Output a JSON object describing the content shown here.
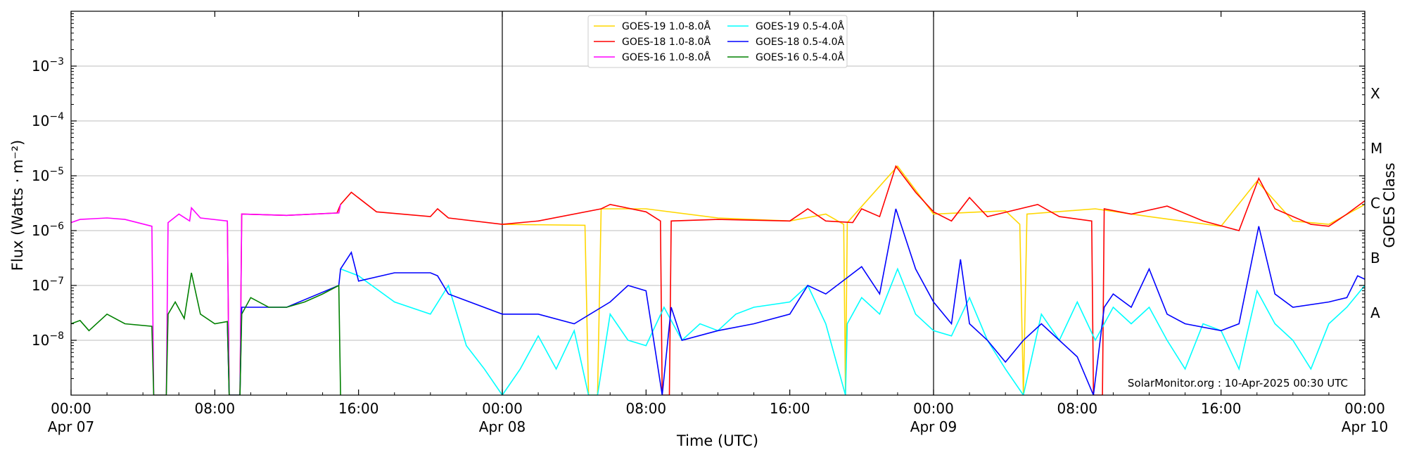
{
  "chart_data": {
    "type": "line",
    "xlabel": "Time (UTC)",
    "ylabel": "Flux (Watts · m⁻²)",
    "right_label": "GOES Class",
    "credit": "SolarMonitor.org : 10-Apr-2025 00:30 UTC",
    "x_range_hours": [
      0,
      72
    ],
    "ylim_log10": [
      -9,
      -2
    ],
    "y_ticks": [
      {
        "exp": -8,
        "label": "10",
        "sup": "−8"
      },
      {
        "exp": -7,
        "label": "10",
        "sup": "−7"
      },
      {
        "exp": -6,
        "label": "10",
        "sup": "−6"
      },
      {
        "exp": -5,
        "label": "10",
        "sup": "−5"
      },
      {
        "exp": -4,
        "label": "10",
        "sup": "−4"
      },
      {
        "exp": -3,
        "label": "10",
        "sup": "−3"
      }
    ],
    "x_ticks": [
      {
        "h": 0,
        "time": "00:00",
        "date": "Apr 07"
      },
      {
        "h": 8,
        "time": "08:00",
        "date": ""
      },
      {
        "h": 16,
        "time": "16:00",
        "date": ""
      },
      {
        "h": 24,
        "time": "00:00",
        "date": "Apr 08"
      },
      {
        "h": 32,
        "time": "08:00",
        "date": ""
      },
      {
        "h": 40,
        "time": "16:00",
        "date": ""
      },
      {
        "h": 48,
        "time": "00:00",
        "date": "Apr 09"
      },
      {
        "h": 56,
        "time": "08:00",
        "date": ""
      },
      {
        "h": 64,
        "time": "16:00",
        "date": ""
      },
      {
        "h": 72,
        "time": "00:00",
        "date": "Apr 10"
      }
    ],
    "day_boundaries_hours": [
      24,
      48
    ],
    "goes_classes": [
      {
        "label": "A",
        "exp": -7.5
      },
      {
        "label": "B",
        "exp": -6.5
      },
      {
        "label": "C",
        "exp": -5.5
      },
      {
        "label": "M",
        "exp": -4.5
      },
      {
        "label": "X",
        "exp": -3.5
      }
    ],
    "legend_placement": "top-center",
    "grid": "horizontal",
    "series": [
      {
        "name": "GOES-19 1.0-8.0Å",
        "color": "#ffd700",
        "points": [
          [
            24,
            1.3e-06
          ],
          [
            28.6,
            1.25e-06
          ],
          [
            28.8,
            1e-09
          ],
          [
            29.3,
            1e-09
          ],
          [
            29.5,
            2.5e-06
          ],
          [
            32,
            2.5e-06
          ],
          [
            36,
            1.7e-06
          ],
          [
            40,
            1.5e-06
          ],
          [
            42,
            2e-06
          ],
          [
            43,
            1.3e-06
          ],
          [
            43.1,
            1e-09
          ],
          [
            43.2,
            1.4e-06
          ],
          [
            46,
            1.5e-05
          ],
          [
            48,
            2e-06
          ],
          [
            52,
            2.3e-06
          ],
          [
            52.8,
            1.3e-06
          ],
          [
            53.0,
            1e-09
          ],
          [
            53.2,
            2e-06
          ],
          [
            57,
            2.5e-06
          ],
          [
            60,
            1.8e-06
          ],
          [
            64,
            1.2e-06
          ],
          [
            66,
            8e-06
          ],
          [
            68,
            1.5e-06
          ],
          [
            70,
            1.3e-06
          ],
          [
            72,
            3e-06
          ]
        ]
      },
      {
        "name": "GOES-18 1.0-8.0Å",
        "color": "#ff0000",
        "points": [
          [
            8.7,
            1.5e-06
          ],
          [
            8.8,
            1e-09
          ],
          [
            9.4,
            1e-09
          ],
          [
            9.5,
            2e-06
          ],
          [
            12,
            1.9e-06
          ],
          [
            14.8,
            2.1e-06
          ],
          [
            15,
            3e-06
          ],
          [
            15.6,
            5e-06
          ],
          [
            17,
            2.2e-06
          ],
          [
            20,
            1.8e-06
          ],
          [
            20.4,
            2.5e-06
          ],
          [
            21,
            1.7e-06
          ],
          [
            24,
            1.3e-06
          ],
          [
            26,
            1.5e-06
          ],
          [
            29.5,
            2.5e-06
          ],
          [
            30,
            3e-06
          ],
          [
            32,
            2.2e-06
          ],
          [
            32.8,
            1.5e-06
          ],
          [
            32.9,
            1e-09
          ],
          [
            33.3,
            1e-09
          ],
          [
            33.4,
            1.5e-06
          ],
          [
            36,
            1.6e-06
          ],
          [
            40,
            1.5e-06
          ],
          [
            41,
            2.5e-06
          ],
          [
            42,
            1.5e-06
          ],
          [
            43.5,
            1.4e-06
          ],
          [
            44,
            2.5e-06
          ],
          [
            45,
            1.8e-06
          ],
          [
            45.9,
            1.5e-05
          ],
          [
            47,
            5e-06
          ],
          [
            48,
            2.2e-06
          ],
          [
            49,
            1.5e-06
          ],
          [
            50,
            4e-06
          ],
          [
            51,
            1.8e-06
          ],
          [
            53.8,
            3e-06
          ],
          [
            55,
            1.8e-06
          ],
          [
            56.8,
            1.5e-06
          ],
          [
            56.9,
            1e-09
          ],
          [
            57.4,
            1e-09
          ],
          [
            57.5,
            2.5e-06
          ],
          [
            59,
            2e-06
          ],
          [
            61,
            2.8e-06
          ],
          [
            63,
            1.5e-06
          ],
          [
            65,
            1e-06
          ],
          [
            66.1,
            9e-06
          ],
          [
            67,
            2.5e-06
          ],
          [
            69,
            1.3e-06
          ],
          [
            70,
            1.2e-06
          ],
          [
            71,
            2e-06
          ],
          [
            72,
            3.5e-06
          ]
        ]
      },
      {
        "name": "GOES-16 1.0-8.0Å",
        "color": "#ff00ff",
        "points": [
          [
            0,
            1.4e-06
          ],
          [
            0.5,
            1.6e-06
          ],
          [
            2,
            1.7e-06
          ],
          [
            3,
            1.6e-06
          ],
          [
            4.5,
            1.2e-06
          ],
          [
            4.6,
            1e-09
          ],
          [
            5.3,
            1e-09
          ],
          [
            5.4,
            1.4e-06
          ],
          [
            6,
            2e-06
          ],
          [
            6.6,
            1.5e-06
          ],
          [
            6.7,
            2.6e-06
          ],
          [
            7.2,
            1.7e-06
          ],
          [
            8.7,
            1.5e-06
          ],
          [
            8.8,
            1e-09
          ],
          [
            9.4,
            1e-09
          ],
          [
            9.5,
            2e-06
          ],
          [
            12,
            1.9e-06
          ],
          [
            14.9,
            2.1e-06
          ],
          [
            15.0,
            3e-06
          ]
        ]
      },
      {
        "name": "GOES-19 0.5-4.0Å",
        "color": "#00ffff",
        "points": [
          [
            15,
            2e-07
          ],
          [
            16,
            1.5e-07
          ],
          [
            18,
            5e-08
          ],
          [
            20,
            3e-08
          ],
          [
            21,
            1e-07
          ],
          [
            22,
            8e-09
          ],
          [
            23,
            3e-09
          ],
          [
            24,
            1e-09
          ],
          [
            25,
            3e-09
          ],
          [
            26,
            1.2e-08
          ],
          [
            27,
            3e-09
          ],
          [
            28,
            1.5e-08
          ],
          [
            28.8,
            1e-09
          ],
          [
            29.3,
            1e-09
          ],
          [
            30,
            3e-08
          ],
          [
            31,
            1e-08
          ],
          [
            32,
            8e-09
          ],
          [
            33,
            4e-08
          ],
          [
            34,
            1e-08
          ],
          [
            35,
            2e-08
          ],
          [
            36,
            1.5e-08
          ],
          [
            37,
            3e-08
          ],
          [
            38,
            4e-08
          ],
          [
            40,
            5e-08
          ],
          [
            41,
            1e-07
          ],
          [
            42,
            2e-08
          ],
          [
            43.1,
            1e-09
          ],
          [
            43.2,
            2e-08
          ],
          [
            44,
            6e-08
          ],
          [
            45,
            3e-08
          ],
          [
            46,
            2e-07
          ],
          [
            47,
            3e-08
          ],
          [
            48,
            1.5e-08
          ],
          [
            49,
            1.2e-08
          ],
          [
            50,
            6e-08
          ],
          [
            51,
            1e-08
          ],
          [
            52,
            3e-09
          ],
          [
            53,
            1e-09
          ],
          [
            54,
            3e-08
          ],
          [
            55,
            1e-08
          ],
          [
            56,
            5e-08
          ],
          [
            57,
            1e-08
          ],
          [
            58,
            4e-08
          ],
          [
            59,
            2e-08
          ],
          [
            60,
            4e-08
          ],
          [
            61,
            1e-08
          ],
          [
            62,
            3e-09
          ],
          [
            63,
            2e-08
          ],
          [
            64,
            1.5e-08
          ],
          [
            65,
            3e-09
          ],
          [
            66,
            8e-08
          ],
          [
            67,
            2e-08
          ],
          [
            68,
            1e-08
          ],
          [
            69,
            3e-09
          ],
          [
            70,
            2e-08
          ],
          [
            71,
            4e-08
          ],
          [
            72,
            1e-07
          ]
        ]
      },
      {
        "name": "GOES-18 0.5-4.0Å",
        "color": "#0000ff",
        "points": [
          [
            8.7,
            2e-08
          ],
          [
            8.8,
            1e-09
          ],
          [
            9.4,
            1e-09
          ],
          [
            9.5,
            4e-08
          ],
          [
            12,
            4e-08
          ],
          [
            14.9,
            1e-07
          ],
          [
            15.0,
            2e-07
          ],
          [
            15.6,
            4e-07
          ],
          [
            16,
            1.2e-07
          ],
          [
            18,
            1.7e-07
          ],
          [
            20,
            1.7e-07
          ],
          [
            20.4,
            1.5e-07
          ],
          [
            21,
            7e-08
          ],
          [
            24,
            3e-08
          ],
          [
            26,
            3e-08
          ],
          [
            28,
            2e-08
          ],
          [
            30,
            5e-08
          ],
          [
            31,
            1e-07
          ],
          [
            32,
            8e-08
          ],
          [
            32.9,
            1e-09
          ],
          [
            33.4,
            4e-08
          ],
          [
            34,
            1e-08
          ],
          [
            36,
            1.5e-08
          ],
          [
            38,
            2e-08
          ],
          [
            40,
            3e-08
          ],
          [
            41,
            1e-07
          ],
          [
            42,
            7e-08
          ],
          [
            44,
            2.2e-07
          ],
          [
            45,
            7e-08
          ],
          [
            45.9,
            2.5e-06
          ],
          [
            47,
            2e-07
          ],
          [
            48,
            5e-08
          ],
          [
            49,
            2e-08
          ],
          [
            49.5,
            3e-07
          ],
          [
            50,
            2e-08
          ],
          [
            51,
            1e-08
          ],
          [
            52,
            4e-09
          ],
          [
            53,
            1e-08
          ],
          [
            54,
            2e-08
          ],
          [
            55,
            1e-08
          ],
          [
            56,
            5e-09
          ],
          [
            56.9,
            1e-09
          ],
          [
            57.5,
            4e-08
          ],
          [
            58,
            7e-08
          ],
          [
            59,
            4e-08
          ],
          [
            60,
            2e-07
          ],
          [
            61,
            3e-08
          ],
          [
            62,
            2e-08
          ],
          [
            64,
            1.5e-08
          ],
          [
            65,
            2e-08
          ],
          [
            66.1,
            1.2e-06
          ],
          [
            67,
            7e-08
          ],
          [
            68,
            4e-08
          ],
          [
            70,
            5e-08
          ],
          [
            71,
            6e-08
          ],
          [
            71.6,
            1.5e-07
          ],
          [
            72,
            1.3e-07
          ]
        ]
      },
      {
        "name": "GOES-16 0.5-4.0Å",
        "color": "#008000",
        "points": [
          [
            0,
            2e-08
          ],
          [
            0.5,
            2.3e-08
          ],
          [
            1,
            1.5e-08
          ],
          [
            2,
            3e-08
          ],
          [
            3,
            2e-08
          ],
          [
            4.5,
            1.8e-08
          ],
          [
            4.6,
            1e-09
          ],
          [
            5.3,
            1e-09
          ],
          [
            5.4,
            3e-08
          ],
          [
            5.8,
            5e-08
          ],
          [
            6.3,
            2.5e-08
          ],
          [
            6.7,
            1.7e-07
          ],
          [
            7.2,
            3e-08
          ],
          [
            8.0,
            2e-08
          ],
          [
            8.7,
            2.2e-08
          ],
          [
            8.8,
            1e-09
          ],
          [
            9.4,
            1e-09
          ],
          [
            9.5,
            3e-08
          ],
          [
            10,
            6e-08
          ],
          [
            11,
            4e-08
          ],
          [
            12,
            4e-08
          ],
          [
            13,
            5e-08
          ],
          [
            14,
            7e-08
          ],
          [
            14.9,
            1e-07
          ],
          [
            15.0,
            1e-09
          ]
        ]
      }
    ]
  }
}
